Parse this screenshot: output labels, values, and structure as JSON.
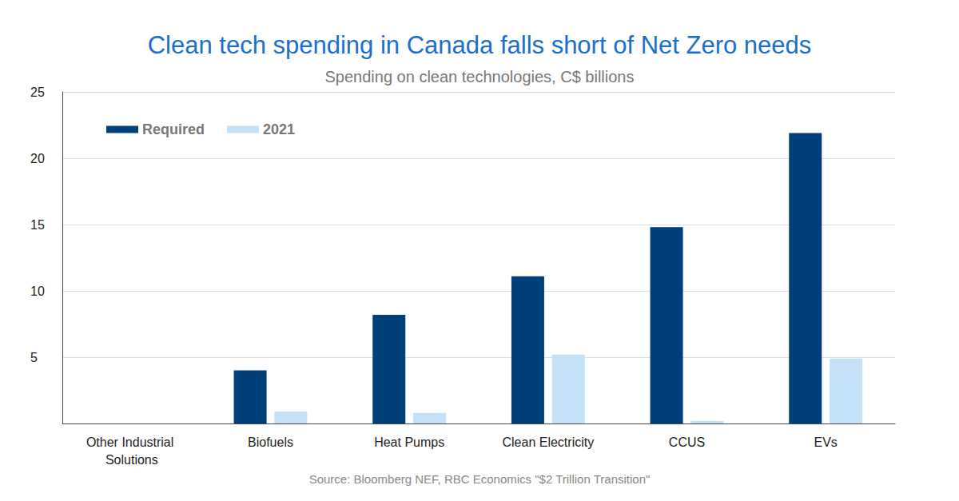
{
  "chart_data": {
    "type": "bar",
    "title": "Clean tech spending in Canada falls short of Net Zero needs",
    "subtitle": "Spending on clean technologies, C$ billions",
    "source": "Source: Bloomberg NEF, RBC Economics \"$2 Trillion Transition\"",
    "categories": [
      "Other Industrial Solutions",
      "Biofuels",
      "Heat Pumps",
      "Clean Electricity",
      "CCUS",
      "EVs"
    ],
    "series": [
      {
        "name": "Required",
        "color": "#00407a",
        "values": [
          0,
          4.0,
          8.2,
          11.1,
          14.8,
          21.9
        ]
      },
      {
        "name": "2021",
        "color": "#c5e1f8",
        "values": [
          0,
          0.9,
          0.8,
          5.2,
          0.2,
          4.9
        ]
      }
    ],
    "ylim": [
      0,
      25
    ],
    "yticks": [
      5,
      10,
      15,
      20,
      25
    ],
    "grid": true,
    "legend": "upper left"
  }
}
